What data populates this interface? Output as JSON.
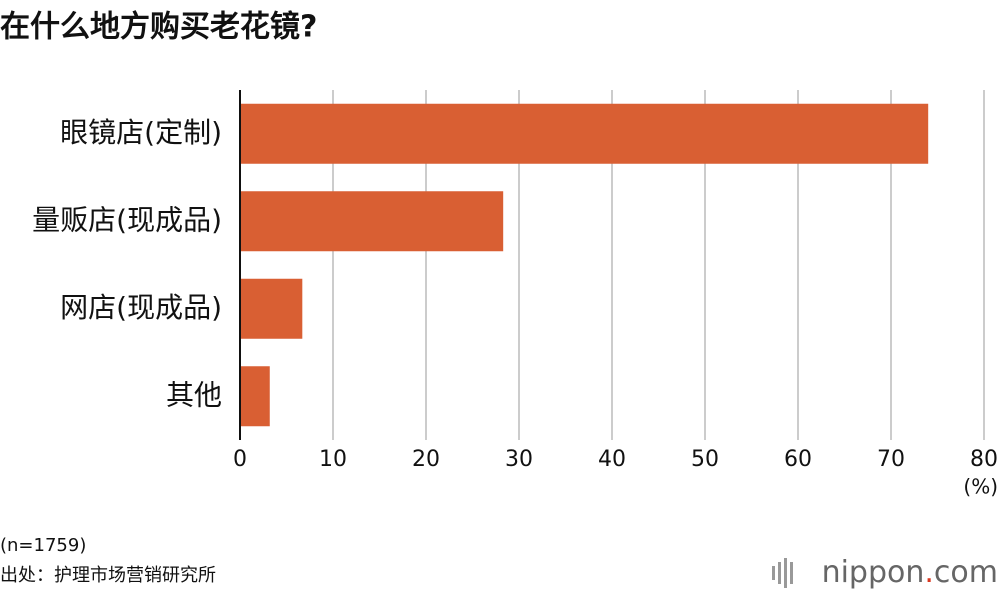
{
  "chart_data": {
    "type": "bar",
    "title": "在什么地方购买老花镜?",
    "categories": [
      "眼镜店(定制)",
      "量贩店(现成品)",
      "网店(现成品)",
      "其他"
    ],
    "values": [
      74.0,
      28.3,
      6.7,
      3.2
    ],
    "color": "#d95f33",
    "xlim": [
      0,
      80
    ],
    "xticks": [
      0,
      10,
      20,
      30,
      40,
      50,
      60,
      70,
      80
    ],
    "grid": true,
    "unit": "(%)",
    "note": "(n=1759)",
    "source": "出处：护理市场营销研究所"
  },
  "logo": {
    "name": "nippon",
    "dot": ".",
    "tld": "com"
  }
}
